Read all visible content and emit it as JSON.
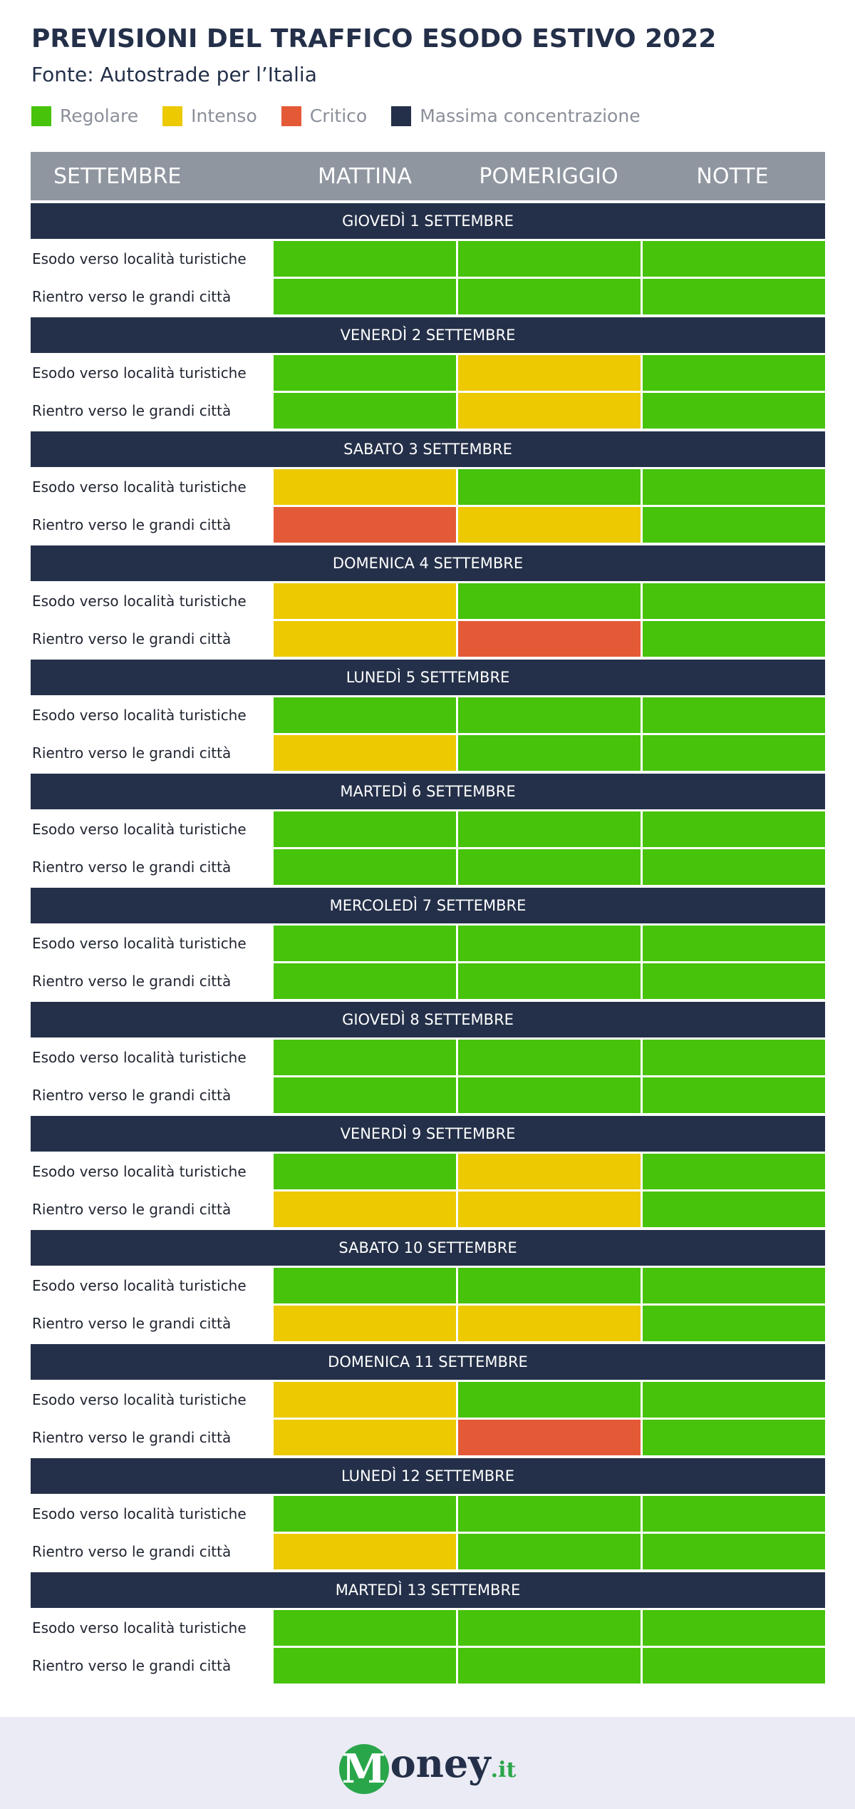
{
  "title": "PREVISIONI DEL TRAFFICO ESODO ESTIVO 2022",
  "subtitle": "Fonte: Autostrade per l’Italia",
  "legend": [
    {
      "key": "R",
      "label": "Regolare",
      "color": "#46c30a"
    },
    {
      "key": "I",
      "label": "Intenso",
      "color": "#ecc900"
    },
    {
      "key": "C",
      "label": "Critico",
      "color": "#e45a37"
    },
    {
      "key": "M",
      "label": "Massima concentrazione",
      "color": "#243049"
    }
  ],
  "chart_data": {
    "type": "table",
    "columns": [
      "SETTEMBRE",
      "MATTINA",
      "POMERIGGIO",
      "NOTTE"
    ],
    "row_labels": [
      "Esodo verso località turistiche",
      "Rientro verso le grandi città"
    ],
    "days": [
      {
        "label": "GIOVEDÌ 1 SETTEMBRE",
        "rows": [
          [
            "R",
            "R",
            "R"
          ],
          [
            "R",
            "R",
            "R"
          ]
        ]
      },
      {
        "label": "VENERDÌ 2 SETTEMBRE",
        "rows": [
          [
            "R",
            "I",
            "R"
          ],
          [
            "R",
            "I",
            "R"
          ]
        ]
      },
      {
        "label": "SABATO 3 SETTEMBRE",
        "rows": [
          [
            "I",
            "R",
            "R"
          ],
          [
            "C",
            "I",
            "R"
          ]
        ]
      },
      {
        "label": "DOMENICA 4 SETTEMBRE",
        "rows": [
          [
            "I",
            "R",
            "R"
          ],
          [
            "I",
            "C",
            "R"
          ]
        ]
      },
      {
        "label": "LUNEDÌ 5 SETTEMBRE",
        "rows": [
          [
            "R",
            "R",
            "R"
          ],
          [
            "I",
            "R",
            "R"
          ]
        ]
      },
      {
        "label": "MARTEDÌ 6 SETTEMBRE",
        "rows": [
          [
            "R",
            "R",
            "R"
          ],
          [
            "R",
            "R",
            "R"
          ]
        ]
      },
      {
        "label": "MERCOLEDÌ 7 SETTEMBRE",
        "rows": [
          [
            "R",
            "R",
            "R"
          ],
          [
            "R",
            "R",
            "R"
          ]
        ]
      },
      {
        "label": "GIOVEDÌ 8 SETTEMBRE",
        "rows": [
          [
            "R",
            "R",
            "R"
          ],
          [
            "R",
            "R",
            "R"
          ]
        ]
      },
      {
        "label": "VENERDÌ 9 SETTEMBRE",
        "rows": [
          [
            "R",
            "I",
            "R"
          ],
          [
            "I",
            "I",
            "R"
          ]
        ]
      },
      {
        "label": "SABATO 10 SETTEMBRE",
        "rows": [
          [
            "R",
            "R",
            "R"
          ],
          [
            "I",
            "I",
            "R"
          ]
        ]
      },
      {
        "label": "DOMENICA 11 SETTEMBRE",
        "rows": [
          [
            "I",
            "R",
            "R"
          ],
          [
            "I",
            "C",
            "R"
          ]
        ]
      },
      {
        "label": "LUNEDÌ 12 SETTEMBRE",
        "rows": [
          [
            "R",
            "R",
            "R"
          ],
          [
            "I",
            "R",
            "R"
          ]
        ]
      },
      {
        "label": "MARTEDÌ 13 SETTEMBRE",
        "rows": [
          [
            "R",
            "R",
            "R"
          ],
          [
            "R",
            "R",
            "R"
          ]
        ]
      }
    ]
  },
  "footer": {
    "logo_m": "M",
    "logo_rest": "oney",
    "logo_suffix": ".it"
  }
}
